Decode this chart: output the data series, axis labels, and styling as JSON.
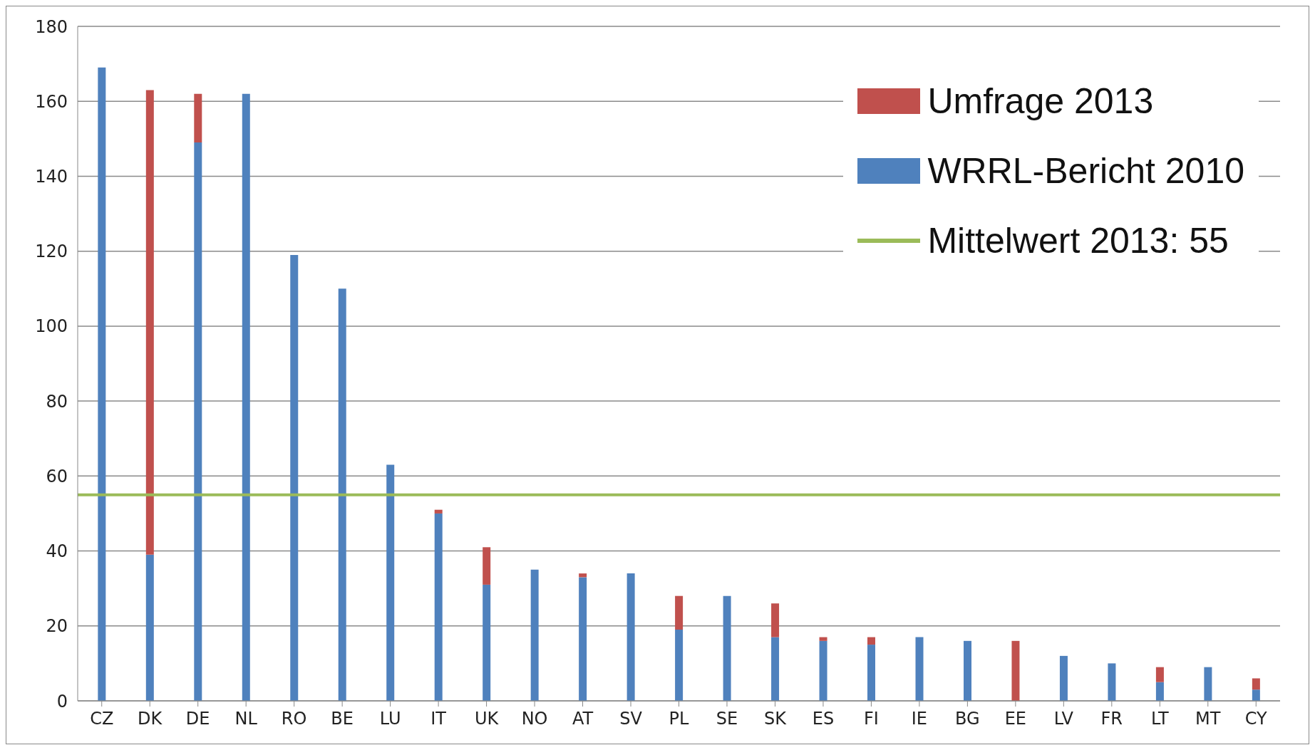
{
  "chart_data": {
    "type": "bar",
    "stacked": true,
    "categories": [
      "CZ",
      "DK",
      "DE",
      "NL",
      "RO",
      "BE",
      "LU",
      "IT",
      "UK",
      "NO",
      "AT",
      "SV",
      "PL",
      "SE",
      "SK",
      "ES",
      "FI",
      "IE",
      "BG",
      "EE",
      "LV",
      "FR",
      "LT",
      "MT",
      "CY"
    ],
    "series": [
      {
        "name": "WRRL-Bericht 2010",
        "color": "#4f81bd",
        "values": [
          169,
          39,
          149,
          162,
          119,
          110,
          63,
          50,
          31,
          35,
          33,
          34,
          19,
          28,
          17,
          16,
          15,
          17,
          16,
          0,
          12,
          10,
          5,
          9,
          3
        ]
      },
      {
        "name": "Umfrage 2013",
        "color": "#c0504d",
        "values": [
          0,
          124,
          13,
          0,
          0,
          0,
          0,
          1,
          10,
          0,
          1,
          0,
          9,
          0,
          9,
          1,
          2,
          0,
          0,
          16,
          0,
          0,
          4,
          0,
          3
        ]
      }
    ],
    "ylim": [
      0,
      180
    ],
    "yticks": [
      0,
      20,
      40,
      60,
      80,
      100,
      120,
      140,
      160,
      180
    ],
    "grid": "y",
    "legend": "top right",
    "ref_lines": [
      {
        "axis": "y",
        "value": 55,
        "label": "Mittelwert 2013: 55",
        "color": "#9bbb59"
      }
    ]
  }
}
